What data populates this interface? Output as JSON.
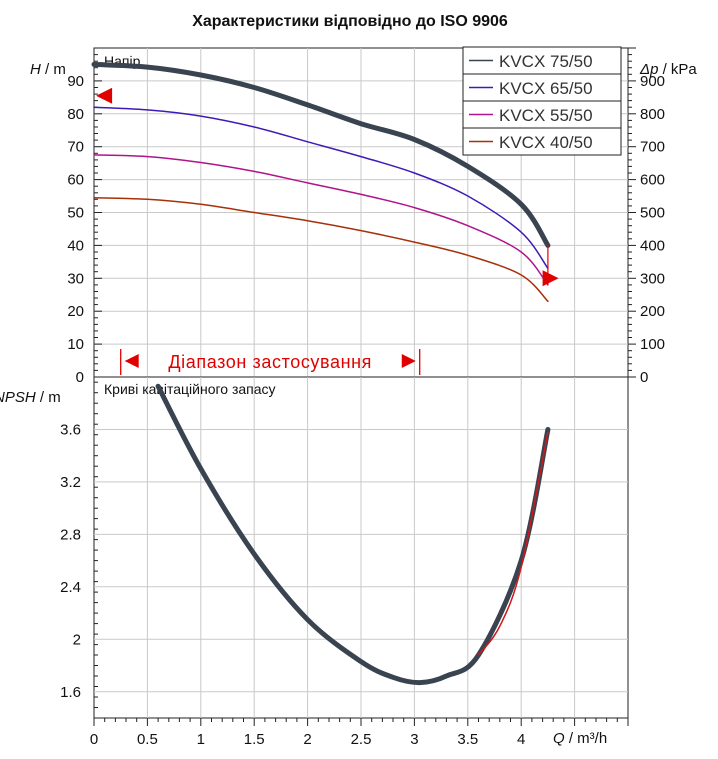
{
  "title": "Характеристики відповідно до ISO 9906",
  "chart_data": [
    {
      "name": "head",
      "type": "line",
      "panel_label": "Напір",
      "ylabel_left_var": "H",
      "ylabel_left_unit": " / m",
      "ylabel_right_var": "Δp",
      "ylabel_right_unit": " / kPa",
      "ylim": [
        0,
        100
      ],
      "yticks": [
        "0",
        "10",
        "20",
        "30",
        "40",
        "50",
        "60",
        "70",
        "80",
        "90"
      ],
      "yticks_right_lim": [
        0,
        1000
      ],
      "yticks_right": [
        "0",
        "100",
        "200",
        "300",
        "400",
        "500",
        "600",
        "700",
        "800",
        "900"
      ],
      "xlim": [
        0,
        5
      ],
      "range_label": "Діапазон застосування",
      "range_x": [
        0.25,
        3.05
      ],
      "series": [
        {
          "name": "KVCX 75/50",
          "color": "#3a4350",
          "width": 5,
          "x": [
            0,
            0.5,
            1,
            1.5,
            2,
            2.5,
            3,
            3.5,
            4,
            4.25
          ],
          "y": [
            95,
            94.2,
            91.8,
            88,
            82.7,
            77,
            72.2,
            64,
            52.5,
            40
          ]
        },
        {
          "name": "KVCX 65/50",
          "color": "#3f1ab8",
          "width": 1.5,
          "x": [
            0,
            0.5,
            1,
            1.5,
            2,
            2.5,
            3,
            3.5,
            4,
            4.25
          ],
          "y": [
            82,
            81.2,
            79.3,
            76,
            71.5,
            67,
            62,
            55,
            44,
            33
          ]
        },
        {
          "name": "KVCX 55/50",
          "color": "#b0148a",
          "width": 1.5,
          "x": [
            0,
            0.5,
            1,
            1.5,
            2,
            2.5,
            3,
            3.5,
            4,
            4.25
          ],
          "y": [
            67.5,
            67,
            65.2,
            62.5,
            59,
            55.5,
            51.5,
            46,
            38,
            28
          ]
        },
        {
          "name": "KVCX 40/50",
          "color": "#a83008",
          "width": 1.5,
          "x": [
            0,
            0.5,
            1,
            1.5,
            2,
            2.5,
            3,
            3.5,
            4,
            4.25
          ],
          "y": [
            54.5,
            54,
            52.5,
            50,
            47.5,
            44.5,
            41,
            37,
            31,
            23
          ]
        }
      ],
      "markers": [
        {
          "x": 0.02,
          "y": 85.5,
          "direction": "left",
          "color": "#e00000"
        },
        {
          "x": 4.2,
          "y": 30,
          "direction": "right",
          "color": "#e00000"
        }
      ]
    },
    {
      "name": "npsh",
      "type": "line",
      "panel_label": "Криві кавітаційного запасу",
      "ylabel_var": "NPSH",
      "ylabel_unit": " / m",
      "ylim": [
        1.4,
        4.0
      ],
      "yticks": [
        "1.6",
        "2",
        "2.4",
        "2.8",
        "3.2",
        "3.6"
      ],
      "xlim": [
        0,
        5
      ],
      "xticks": [
        "0",
        "0.5",
        "1",
        "1.5",
        "2",
        "2.5",
        "3",
        "3.5",
        "4"
      ],
      "xlabel_var": "Q",
      "xlabel_unit": " / m³/h",
      "series": [
        {
          "color": "#3a4350",
          "width": 5,
          "x": [
            0.6,
            1,
            1.5,
            2,
            2.5,
            2.8,
            3.05,
            3.3,
            3.6,
            4,
            4.25
          ],
          "y": [
            3.93,
            3.3,
            2.65,
            2.15,
            1.83,
            1.71,
            1.67,
            1.72,
            1.88,
            2.6,
            3.6
          ]
        },
        {
          "color": "#cc1a1a",
          "width": 1.5,
          "x": [
            3.6,
            3.8,
            4,
            4.25
          ],
          "y": [
            1.88,
            2.1,
            2.55,
            3.58
          ]
        }
      ]
    }
  ]
}
